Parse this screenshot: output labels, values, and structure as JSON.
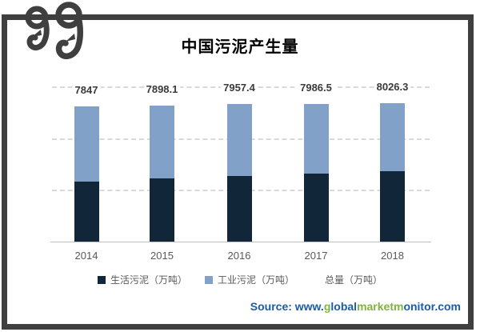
{
  "title": "中国污泥产生量",
  "chart_data": {
    "type": "bar",
    "stacked": true,
    "title": "中国污泥产生量",
    "categories": [
      "2014",
      "2015",
      "2016",
      "2017",
      "2018"
    ],
    "series": [
      {
        "name": "生活污泥（万吨）",
        "color": "#112639",
        "values": [
          3500,
          3650,
          3800,
          3930,
          4090
        ],
        "values_estimated": true
      },
      {
        "name": "工业污泥（万吨）",
        "color": "#82A1C9",
        "values": [
          4347,
          4248.1,
          4157.4,
          4056.5,
          3936.3
        ],
        "values_estimated": true
      }
    ],
    "totals": {
      "name": "总量（万吨）",
      "values": [
        7847,
        7898.1,
        7957.4,
        7986.5,
        8026.3
      ],
      "labels": [
        "7847",
        "7898.1",
        "7957.4",
        "7986.5",
        "8026.3"
      ]
    },
    "ylim": [
      0,
      9000
    ],
    "gridlines": [
      3000,
      6000,
      9000
    ],
    "grid_style": "dashed",
    "legend_position": "bottom",
    "xlabel": "",
    "ylabel": ""
  },
  "legend": {
    "items": [
      {
        "label": "生活污泥（万吨）",
        "marker": "dark-navy-square"
      },
      {
        "label": "工业污泥（万吨）",
        "marker": "light-blue-square"
      },
      {
        "label": "总量（万吨）",
        "marker": "none"
      }
    ]
  },
  "source": {
    "segments": [
      {
        "text": "Source: www.",
        "color": "blue"
      },
      {
        "text": "g",
        "color": "green"
      },
      {
        "text": "lobal",
        "color": "blue"
      },
      {
        "text": "marketm",
        "color": "green"
      },
      {
        "text": "onitor.com",
        "color": "blue"
      }
    ],
    "colors": {
      "blue": "#1C5BA5",
      "green": "#7CB53E"
    }
  },
  "frame_color": "#3F3F3F",
  "grid_color": "#D9D9D9",
  "axis_color": "#BFBFBF"
}
